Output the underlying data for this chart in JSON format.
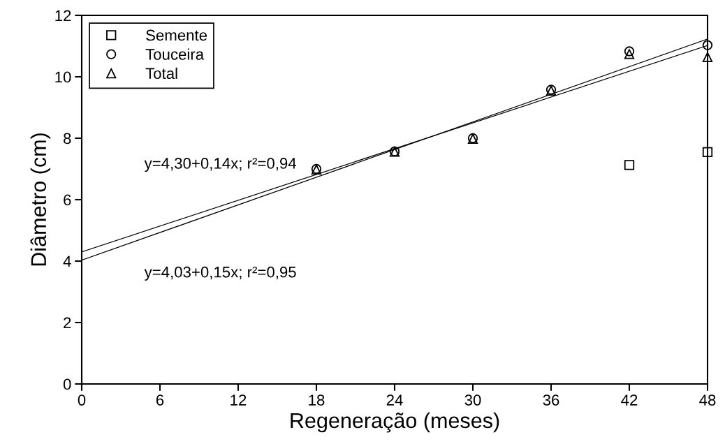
{
  "chart_data": {
    "type": "scatter",
    "xlabel": "Regeneração (meses)",
    "ylabel": "Diâmetro (cm)",
    "xlim": [
      0,
      48
    ],
    "xticks": [
      0,
      6,
      12,
      18,
      24,
      30,
      36,
      42,
      48
    ],
    "ylim": [
      0,
      12
    ],
    "yticks": [
      0,
      2,
      4,
      6,
      8,
      10,
      12
    ],
    "grid": false,
    "legend": "top left",
    "series": [
      {
        "name": "Semente",
        "color": "#000000",
        "marker": "square",
        "x": [
          42,
          48
        ],
        "values": [
          7.13,
          7.55
        ]
      },
      {
        "name": "Touceira",
        "color": "#000000",
        "marker": "circle",
        "x": [
          18,
          24,
          30,
          36,
          42,
          48
        ],
        "values": [
          7.0,
          7.57,
          8.0,
          9.58,
          10.83,
          11.03
        ]
      },
      {
        "name": "Total",
        "color": "#000000",
        "marker": "triangle",
        "x": [
          18,
          24,
          30,
          36,
          42,
          48
        ],
        "values": [
          6.98,
          7.56,
          7.98,
          9.55,
          10.74,
          10.64
        ]
      },
      {
        "type": "line",
        "color": "#000000",
        "marker": "none",
        "line_style": "solid",
        "x": [
          0,
          48
        ],
        "values": [
          4.3,
          11.02
        ]
      },
      {
        "type": "line",
        "color": "#000000",
        "marker": "none",
        "line_style": "solid",
        "x": [
          0,
          48
        ],
        "values": [
          4.03,
          11.23
        ]
      }
    ],
    "annotations": [
      "y=4,30+0,14x; r²=0,94",
      "y=4,03+0,15x; r²=0,95"
    ]
  }
}
